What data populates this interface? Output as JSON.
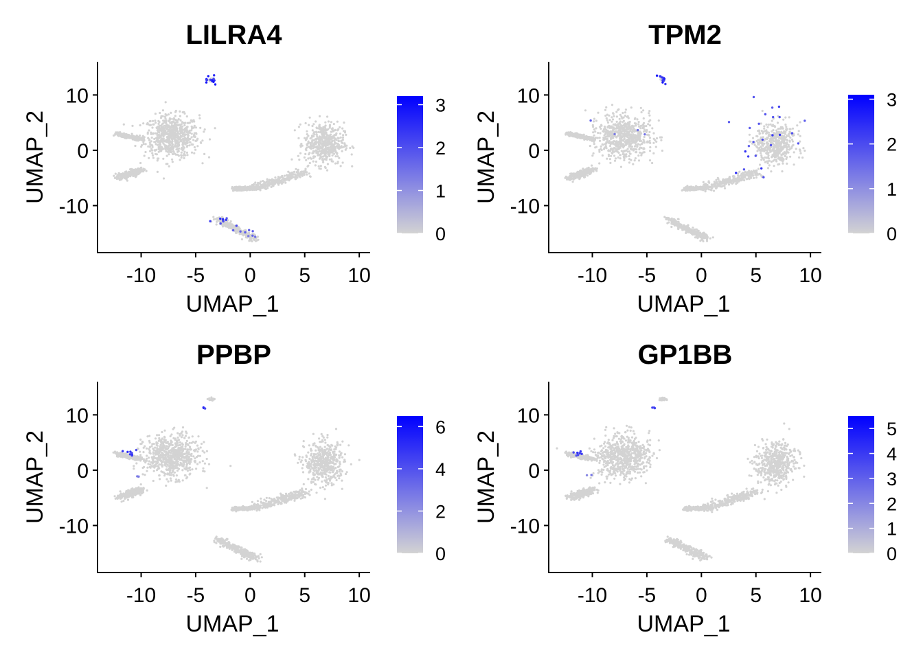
{
  "figure": {
    "colors": {
      "low": "#d3d3d3",
      "high": "#0000ff",
      "axis": "#000000",
      "background": "#ffffff"
    }
  },
  "chart_data": [
    {
      "type": "scatter",
      "title": "LILRA4",
      "xlabel": "UMAP_1",
      "ylabel": "UMAP_2",
      "xlim": [
        -14,
        11
      ],
      "ylim": [
        -18.5,
        16
      ],
      "xticks": [
        -10,
        -5,
        0,
        5,
        10
      ],
      "yticks": [
        -10,
        0,
        10
      ],
      "x_tick_labels": [
        "-10",
        "-5",
        "0",
        "5",
        "10"
      ],
      "y_tick_labels": [
        "-10",
        "0",
        "10"
      ],
      "legend": {
        "min": 0,
        "max": 3.2,
        "breaks": [
          0,
          1,
          2,
          3
        ],
        "labels": [
          "0",
          "1",
          "2",
          "3"
        ],
        "placement": "right"
      },
      "clusters": [
        {
          "shape": "blob",
          "center": [
            -7.2,
            2.5
          ],
          "spread": [
            2.8,
            4.2
          ]
        },
        {
          "shape": "streak",
          "from": [
            -10,
            -3.5
          ],
          "to": [
            -12,
            -5
          ],
          "spread": 0.7
        },
        {
          "shape": "streak",
          "from": [
            -10,
            2
          ],
          "to": [
            -12.3,
            3
          ],
          "spread": 0.4
        },
        {
          "shape": "blob",
          "center": [
            6.8,
            1.2
          ],
          "spread": [
            2.0,
            4.2
          ]
        },
        {
          "shape": "streak",
          "from": [
            5,
            -4
          ],
          "to": [
            0.5,
            -6.8
          ],
          "spread": 0.9
        },
        {
          "shape": "streak",
          "from": [
            0.5,
            -6.8
          ],
          "to": [
            -1.5,
            -7
          ],
          "spread": 0.4
        },
        {
          "shape": "streak",
          "from": [
            -3,
            -12.5
          ],
          "to": [
            0.5,
            -16
          ],
          "spread": 0.7
        },
        {
          "shape": "blob",
          "center": [
            -3.5,
            12.8
          ],
          "spread": [
            0.3,
            0.3
          ]
        }
      ],
      "highlights": [
        {
          "x": -3.6,
          "y": 12.6,
          "value": 3.0,
          "spread": 0.35,
          "count": 14
        },
        {
          "x": -2.6,
          "y": -12.8,
          "value": 2.6,
          "spread": 0.5,
          "count": 8
        },
        {
          "x": -1.0,
          "y": -14.5,
          "value": 2.2,
          "spread": 0.5,
          "count": 6
        },
        {
          "x": 0.3,
          "y": -15.7,
          "value": 1.8,
          "spread": 0.3,
          "count": 3
        }
      ]
    },
    {
      "type": "scatter",
      "title": "TPM2",
      "xlabel": "UMAP_1",
      "ylabel": "UMAP_2",
      "xlim": [
        -14,
        11
      ],
      "ylim": [
        -18.5,
        16
      ],
      "xticks": [
        -10,
        -5,
        0,
        5,
        10
      ],
      "yticks": [
        -10,
        0,
        10
      ],
      "x_tick_labels": [
        "-10",
        "-5",
        "0",
        "5",
        "10"
      ],
      "y_tick_labels": [
        "-10",
        "0",
        "10"
      ],
      "legend": {
        "min": 0,
        "max": 3.1,
        "breaks": [
          0,
          1,
          2,
          3
        ],
        "labels": [
          "0",
          "1",
          "2",
          "3"
        ],
        "placement": "right"
      },
      "clusters": [
        {
          "shape": "blob",
          "center": [
            -7.2,
            2.5
          ],
          "spread": [
            2.8,
            4.2
          ]
        },
        {
          "shape": "streak",
          "from": [
            -10,
            -3.5
          ],
          "to": [
            -12,
            -5
          ],
          "spread": 0.7
        },
        {
          "shape": "streak",
          "from": [
            -10,
            2
          ],
          "to": [
            -12.3,
            3
          ],
          "spread": 0.4
        },
        {
          "shape": "blob",
          "center": [
            6.8,
            1.2
          ],
          "spread": [
            2.0,
            4.2
          ]
        },
        {
          "shape": "streak",
          "from": [
            5,
            -4
          ],
          "to": [
            0.5,
            -6.8
          ],
          "spread": 0.9
        },
        {
          "shape": "streak",
          "from": [
            0.5,
            -6.8
          ],
          "to": [
            -1.5,
            -7
          ],
          "spread": 0.4
        },
        {
          "shape": "streak",
          "from": [
            -3,
            -12.5
          ],
          "to": [
            0.5,
            -16
          ],
          "spread": 0.7
        },
        {
          "shape": "blob",
          "center": [
            -3.5,
            12.8
          ],
          "spread": [
            0.3,
            0.3
          ]
        }
      ],
      "highlights": [
        {
          "x": -3.6,
          "y": 12.6,
          "value": 2.8,
          "spread": 0.3,
          "count": 10
        },
        {
          "x": 6.5,
          "y": 6.5,
          "value": 2.5,
          "spread": 1.5,
          "count": 8
        },
        {
          "x": 6.5,
          "y": 3.0,
          "value": 2.3,
          "spread": 1.5,
          "count": 10
        },
        {
          "x": 4.5,
          "y": -3.5,
          "value": 2.5,
          "spread": 1.3,
          "count": 7
        },
        {
          "x": -7.5,
          "y": 3.5,
          "value": 1.8,
          "spread": 2.0,
          "count": 4
        }
      ]
    },
    {
      "type": "scatter",
      "title": "PPBP",
      "xlabel": "UMAP_1",
      "ylabel": "UMAP_2",
      "xlim": [
        -14,
        11
      ],
      "ylim": [
        -18.5,
        16
      ],
      "xticks": [
        -10,
        -5,
        0,
        5,
        10
      ],
      "yticks": [
        -10,
        0,
        10
      ],
      "x_tick_labels": [
        "-10",
        "-5",
        "0",
        "5",
        "10"
      ],
      "y_tick_labels": [
        "-10",
        "0",
        "10"
      ],
      "legend": {
        "min": 0,
        "max": 6.5,
        "breaks": [
          0,
          2,
          4,
          6
        ],
        "labels": [
          "0",
          "2",
          "4",
          "6"
        ],
        "placement": "right"
      },
      "clusters": [
        {
          "shape": "blob",
          "center": [
            -7.2,
            2.5
          ],
          "spread": [
            2.8,
            4.2
          ]
        },
        {
          "shape": "streak",
          "from": [
            -10,
            -3.5
          ],
          "to": [
            -12,
            -5
          ],
          "spread": 0.7
        },
        {
          "shape": "streak",
          "from": [
            -10,
            2
          ],
          "to": [
            -12.3,
            3
          ],
          "spread": 0.4
        },
        {
          "shape": "blob",
          "center": [
            6.8,
            1.2
          ],
          "spread": [
            2.0,
            4.2
          ]
        },
        {
          "shape": "streak",
          "from": [
            5,
            -4
          ],
          "to": [
            0.5,
            -6.8
          ],
          "spread": 0.9
        },
        {
          "shape": "streak",
          "from": [
            0.5,
            -6.8
          ],
          "to": [
            -1.5,
            -7
          ],
          "spread": 0.4
        },
        {
          "shape": "streak",
          "from": [
            -3,
            -12.5
          ],
          "to": [
            0.5,
            -16
          ],
          "spread": 0.7
        },
        {
          "shape": "blob",
          "center": [
            -3.5,
            12.8
          ],
          "spread": [
            0.3,
            0.3
          ]
        }
      ],
      "highlights": [
        {
          "x": -11.2,
          "y": 3.0,
          "value": 5.5,
          "spread": 0.3,
          "count": 8
        },
        {
          "x": -4.3,
          "y": 11.3,
          "value": 5.5,
          "spread": 0.15,
          "count": 3
        },
        {
          "x": -10.3,
          "y": -1.2,
          "value": 3.0,
          "spread": 0.2,
          "count": 2
        }
      ]
    },
    {
      "type": "scatter",
      "title": "GP1BB",
      "xlabel": "UMAP_1",
      "ylabel": "UMAP_2",
      "xlim": [
        -14,
        11
      ],
      "ylim": [
        -18.5,
        16
      ],
      "xticks": [
        -10,
        -5,
        0,
        5,
        10
      ],
      "yticks": [
        -10,
        0,
        10
      ],
      "x_tick_labels": [
        "-10",
        "-5",
        "0",
        "5",
        "10"
      ],
      "y_tick_labels": [
        "-10",
        "0",
        "10"
      ],
      "legend": {
        "min": 0,
        "max": 5.5,
        "breaks": [
          0,
          1,
          2,
          3,
          4,
          5
        ],
        "labels": [
          "0",
          "1",
          "2",
          "3",
          "4",
          "5"
        ],
        "placement": "right"
      },
      "clusters": [
        {
          "shape": "blob",
          "center": [
            -7.2,
            2.5
          ],
          "spread": [
            2.8,
            4.2
          ]
        },
        {
          "shape": "streak",
          "from": [
            -10,
            -3.5
          ],
          "to": [
            -12,
            -5
          ],
          "spread": 0.7
        },
        {
          "shape": "streak",
          "from": [
            -10,
            2
          ],
          "to": [
            -12.3,
            3
          ],
          "spread": 0.4
        },
        {
          "shape": "blob",
          "center": [
            6.8,
            1.2
          ],
          "spread": [
            2.0,
            4.2
          ]
        },
        {
          "shape": "streak",
          "from": [
            5,
            -4
          ],
          "to": [
            0.5,
            -6.8
          ],
          "spread": 0.9
        },
        {
          "shape": "streak",
          "from": [
            0.5,
            -6.8
          ],
          "to": [
            -1.5,
            -7
          ],
          "spread": 0.4
        },
        {
          "shape": "streak",
          "from": [
            -3,
            -12.5
          ],
          "to": [
            0.5,
            -16
          ],
          "spread": 0.7
        },
        {
          "shape": "blob",
          "center": [
            -3.5,
            12.8
          ],
          "spread": [
            0.3,
            0.3
          ]
        }
      ],
      "highlights": [
        {
          "x": -11.2,
          "y": 3.0,
          "value": 4.5,
          "spread": 0.3,
          "count": 7
        },
        {
          "x": -4.4,
          "y": 11.3,
          "value": 4.5,
          "spread": 0.15,
          "count": 3
        },
        {
          "x": -10.4,
          "y": -1.0,
          "value": 2.5,
          "spread": 0.2,
          "count": 2
        }
      ]
    }
  ]
}
